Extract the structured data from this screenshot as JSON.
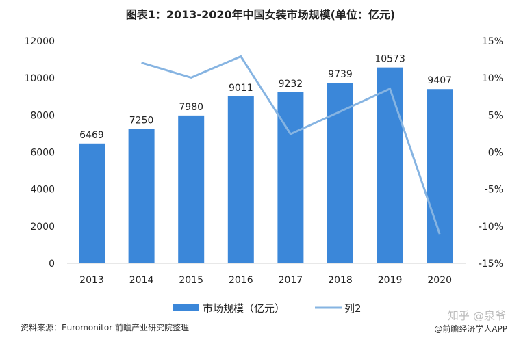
{
  "title": "图表1：2013-2020年中国女装市场规模(单位：亿元)",
  "source": "资料来源：Euromonitor 前瞻产业研究院整理",
  "watermark": "@前瞻经济学人APP",
  "watermark2": "知乎 @泉爷",
  "chart_data": {
    "type": "bar",
    "categories": [
      "2013",
      "2014",
      "2015",
      "2016",
      "2017",
      "2018",
      "2019",
      "2020"
    ],
    "series": [
      {
        "name": "市场规模（亿元）",
        "type": "bar",
        "axis": "left",
        "color": "#3b87d9",
        "values": [
          6469,
          7250,
          7980,
          9011,
          9232,
          9739,
          10573,
          9407
        ]
      },
      {
        "name": "列2",
        "type": "line",
        "axis": "right",
        "color": "#86b4e2",
        "values": [
          null,
          12.07,
          10.07,
          12.92,
          2.45,
          5.49,
          8.56,
          -11.03
        ]
      }
    ],
    "data_labels": [
      "6469",
      "7250",
      "7980",
      "9011",
      "9232",
      "9739",
      "10573",
      "9407"
    ],
    "ylim_left": [
      0,
      12000
    ],
    "yticks_left": [
      "0",
      "2000",
      "4000",
      "6000",
      "8000",
      "10000",
      "12000"
    ],
    "ylim_right": [
      -15,
      15
    ],
    "yticks_right": [
      "-15%",
      "-10%",
      "-5%",
      "0%",
      "5%",
      "10%",
      "15%"
    ],
    "grid": false,
    "legend": "bottom"
  }
}
